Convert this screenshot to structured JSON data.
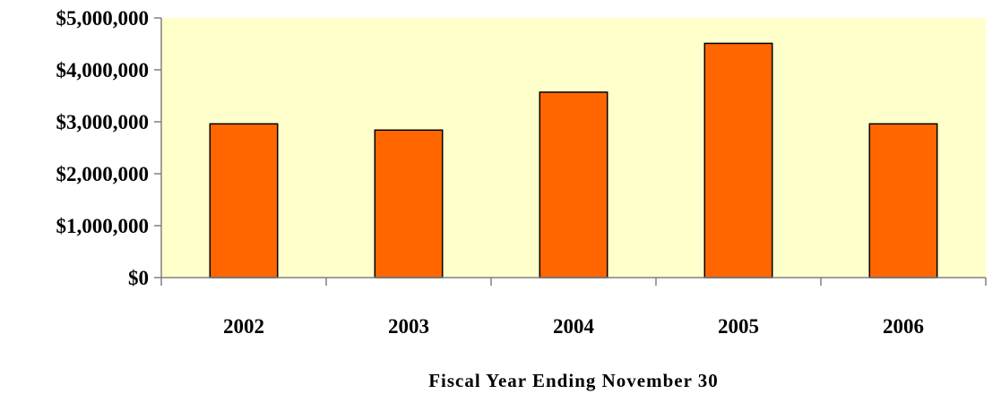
{
  "chart_data": {
    "type": "bar",
    "title": "",
    "xlabel": "Fiscal Year Ending November 30",
    "ylabel": "",
    "categories": [
      "2002",
      "2003",
      "2004",
      "2005",
      "2006"
    ],
    "values": [
      2960000,
      2840000,
      3570000,
      4510000,
      2960000
    ],
    "ylim": [
      0,
      5000000
    ],
    "yticks": [
      0,
      1000000,
      2000000,
      3000000,
      4000000,
      5000000
    ],
    "ytick_labels": [
      "$0",
      "$1,000,000",
      "$2,000,000",
      "$3,000,000",
      "$4,000,000",
      "$5,000,000"
    ],
    "grid": false,
    "legend": "none",
    "colors": {
      "bar": "#ff6600",
      "bar_edge": "#000000",
      "plot_background": "#ffffcc",
      "axis": "#808080"
    }
  }
}
